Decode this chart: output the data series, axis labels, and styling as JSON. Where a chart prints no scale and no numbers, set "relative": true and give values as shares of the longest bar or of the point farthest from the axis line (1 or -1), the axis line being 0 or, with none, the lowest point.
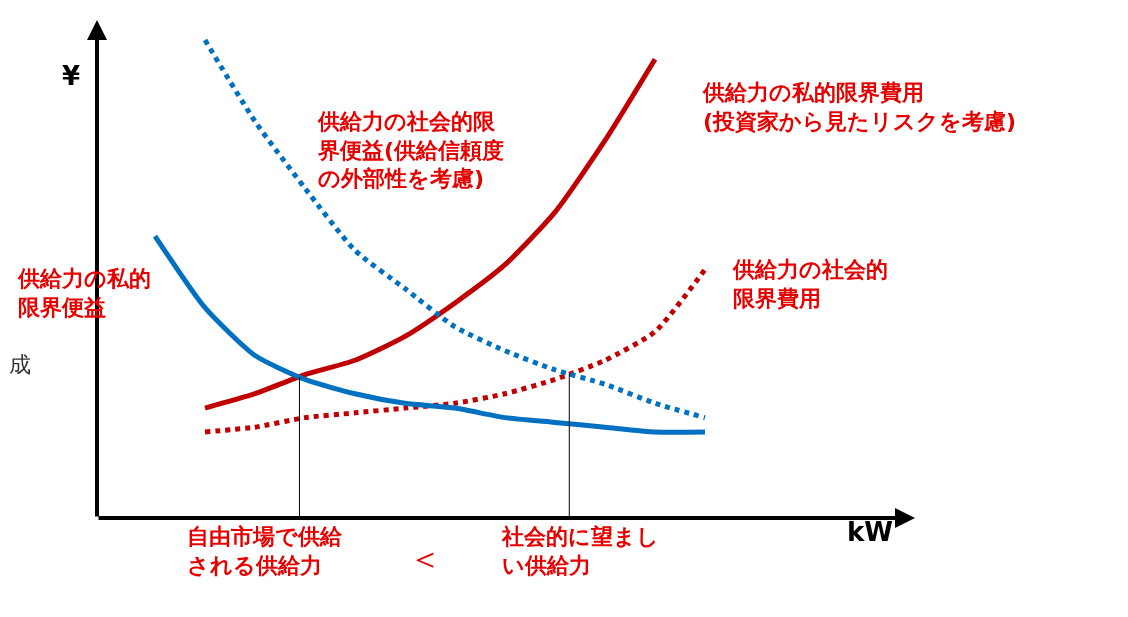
{
  "chart_data": {
    "type": "line",
    "relative": true,
    "xlabel": "kW",
    "ylabel": "¥",
    "categories": [
      null,
      null,
      null,
      null,
      null,
      null,
      null,
      null,
      null,
      null,
      null,
      null
    ],
    "series": [
      {
        "name": "供給力の私的限界費用(投資家から見たリスクを考慮)",
        "color": "#c00000",
        "line_style": "solid",
        "values": [
          null,
          0.23,
          0.26,
          0.3,
          0.33,
          0.38,
          0.45,
          0.53,
          0.64,
          0.79,
          0.96,
          null
        ]
      },
      {
        "name": "供給力の社会的限界費用",
        "color": "#c00000",
        "line_style": "dotted",
        "values": [
          null,
          0.18,
          0.19,
          0.21,
          0.22,
          0.23,
          0.24,
          0.26,
          0.29,
          0.33,
          0.39,
          0.52
        ]
      },
      {
        "name": "供給力の私的限界便益",
        "color": "#0070c0",
        "line_style": "solid",
        "values": [
          0.59,
          0.44,
          0.34,
          0.29,
          0.26,
          0.24,
          0.23,
          0.21,
          0.2,
          0.19,
          0.18,
          0.18
        ]
      },
      {
        "name": "供給力の社会的限界便益(供給信頼度の外部性を考慮)",
        "color": "#0070c0",
        "line_style": "dotted",
        "values": [
          null,
          1.0,
          0.83,
          0.69,
          0.56,
          0.48,
          0.4,
          0.35,
          0.31,
          0.28,
          0.24,
          0.21
        ]
      }
    ],
    "annotations": [
      "自由市場で供給される供給力",
      "＜",
      "社会的に望ましい供給力",
      "成"
    ],
    "legend": false,
    "grid": false,
    "tick_labels": false
  }
}
